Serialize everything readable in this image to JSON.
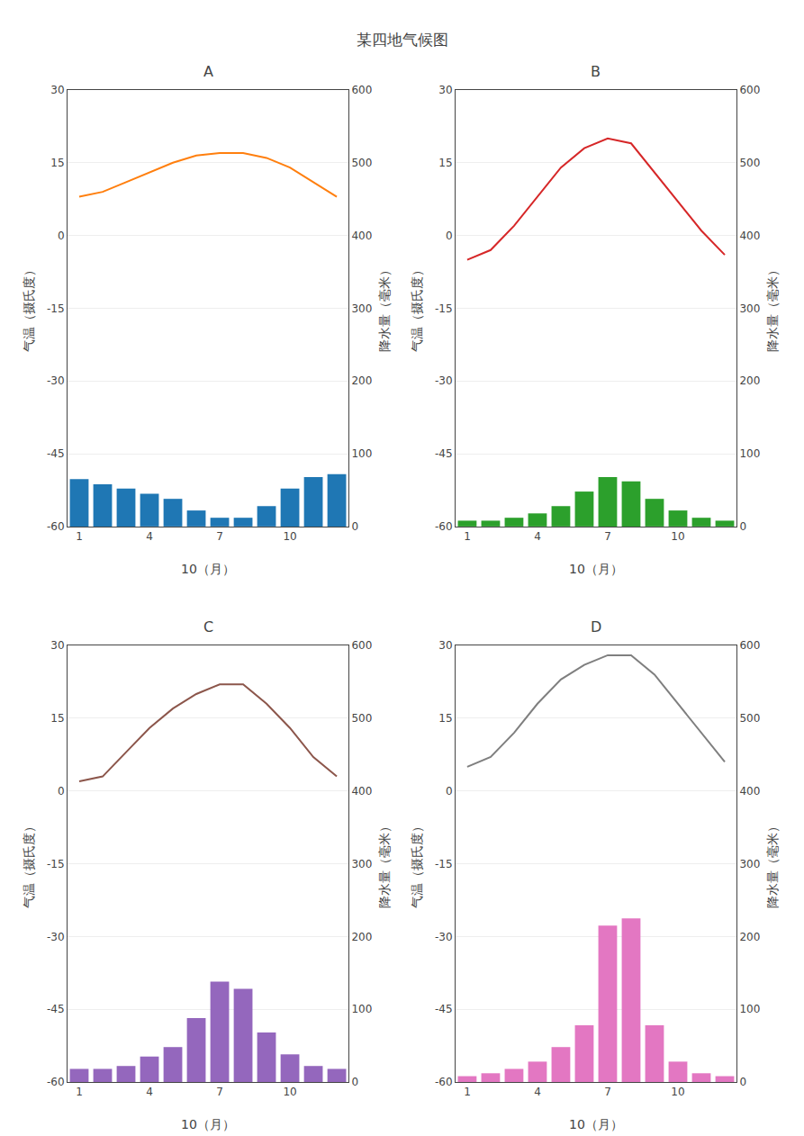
{
  "title": "某四地气候图",
  "chart_data": [
    {
      "type": "bar",
      "title": "A",
      "xlabel": "10（月）",
      "ylabel": "气温（摄氏度）",
      "y2label": "降水量（毫米）",
      "x": [
        1,
        2,
        3,
        4,
        5,
        6,
        7,
        8,
        9,
        10,
        11,
        12
      ],
      "series": [
        {
          "type": "bar",
          "axis": "y2",
          "values": [
            65,
            58,
            52,
            45,
            38,
            22,
            12,
            12,
            28,
            52,
            68,
            72
          ]
        },
        {
          "type": "line",
          "values": [
            8,
            9,
            11,
            13,
            15,
            16.5,
            17,
            17,
            16,
            14,
            11,
            8
          ]
        }
      ],
      "xlim": [
        0.5,
        12.5
      ],
      "xticks": [
        1,
        4,
        7,
        10
      ],
      "ylim": [
        -60,
        30
      ],
      "yticks": [
        30,
        15,
        0,
        -15,
        -30,
        -45,
        -60
      ],
      "y2lim": [
        0,
        600
      ],
      "y2ticks": [
        600,
        500,
        400,
        300,
        200,
        100,
        0
      ],
      "grid": true
    },
    {
      "type": "bar",
      "title": "B",
      "xlabel": "10（月）",
      "ylabel": "气温（摄氏度）",
      "y2label": "降水量（毫米）",
      "x": [
        1,
        2,
        3,
        4,
        5,
        6,
        7,
        8,
        9,
        10,
        11,
        12
      ],
      "series": [
        {
          "type": "bar",
          "axis": "y2",
          "values": [
            8,
            8,
            12,
            18,
            28,
            48,
            68,
            62,
            38,
            22,
            12,
            8
          ]
        },
        {
          "type": "line",
          "values": [
            -5,
            -3,
            2,
            8,
            14,
            18,
            20,
            19,
            13,
            7,
            1,
            -4
          ]
        }
      ],
      "xlim": [
        0.5,
        12.5
      ],
      "xticks": [
        1,
        4,
        7,
        10
      ],
      "ylim": [
        -60,
        30
      ],
      "yticks": [
        30,
        15,
        0,
        -15,
        -30,
        -45,
        -60
      ],
      "y2lim": [
        0,
        600
      ],
      "y2ticks": [
        600,
        500,
        400,
        300,
        200,
        100,
        0
      ],
      "grid": true
    },
    {
      "type": "bar",
      "title": "C",
      "xlabel": "10（月）",
      "ylabel": "气温（摄氏度）",
      "y2label": "降水量（毫米）",
      "x": [
        1,
        2,
        3,
        4,
        5,
        6,
        7,
        8,
        9,
        10,
        11,
        12
      ],
      "series": [
        {
          "type": "bar",
          "axis": "y2",
          "values": [
            18,
            18,
            22,
            35,
            48,
            88,
            138,
            128,
            68,
            38,
            22,
            18
          ]
        },
        {
          "type": "line",
          "values": [
            2,
            3,
            8,
            13,
            17,
            20,
            22,
            22,
            18,
            13,
            7,
            3
          ]
        }
      ],
      "xlim": [
        0.5,
        12.5
      ],
      "xticks": [
        1,
        4,
        7,
        10
      ],
      "ylim": [
        -60,
        30
      ],
      "yticks": [
        30,
        15,
        0,
        -15,
        -30,
        -45,
        -60
      ],
      "y2lim": [
        0,
        600
      ],
      "y2ticks": [
        600,
        500,
        400,
        300,
        200,
        100,
        0
      ],
      "grid": true
    },
    {
      "type": "bar",
      "title": "D",
      "xlabel": "10（月）",
      "ylabel": "气温（摄氏度）",
      "y2label": "降水量（毫米）",
      "x": [
        1,
        2,
        3,
        4,
        5,
        6,
        7,
        8,
        9,
        10,
        11,
        12
      ],
      "series": [
        {
          "type": "bar",
          "axis": "y2",
          "values": [
            8,
            12,
            18,
            28,
            48,
            78,
            215,
            225,
            78,
            28,
            12,
            8
          ]
        },
        {
          "type": "line",
          "values": [
            5,
            7,
            12,
            18,
            23,
            26,
            28,
            28,
            24,
            18,
            12,
            6
          ]
        }
      ],
      "xlim": [
        0.5,
        12.5
      ],
      "xticks": [
        1,
        4,
        7,
        10
      ],
      "ylim": [
        -60,
        30
      ],
      "yticks": [
        30,
        15,
        0,
        -15,
        -30,
        -45,
        -60
      ],
      "y2lim": [
        0,
        600
      ],
      "y2ticks": [
        600,
        500,
        400,
        300,
        200,
        100,
        0
      ],
      "grid": true
    }
  ]
}
